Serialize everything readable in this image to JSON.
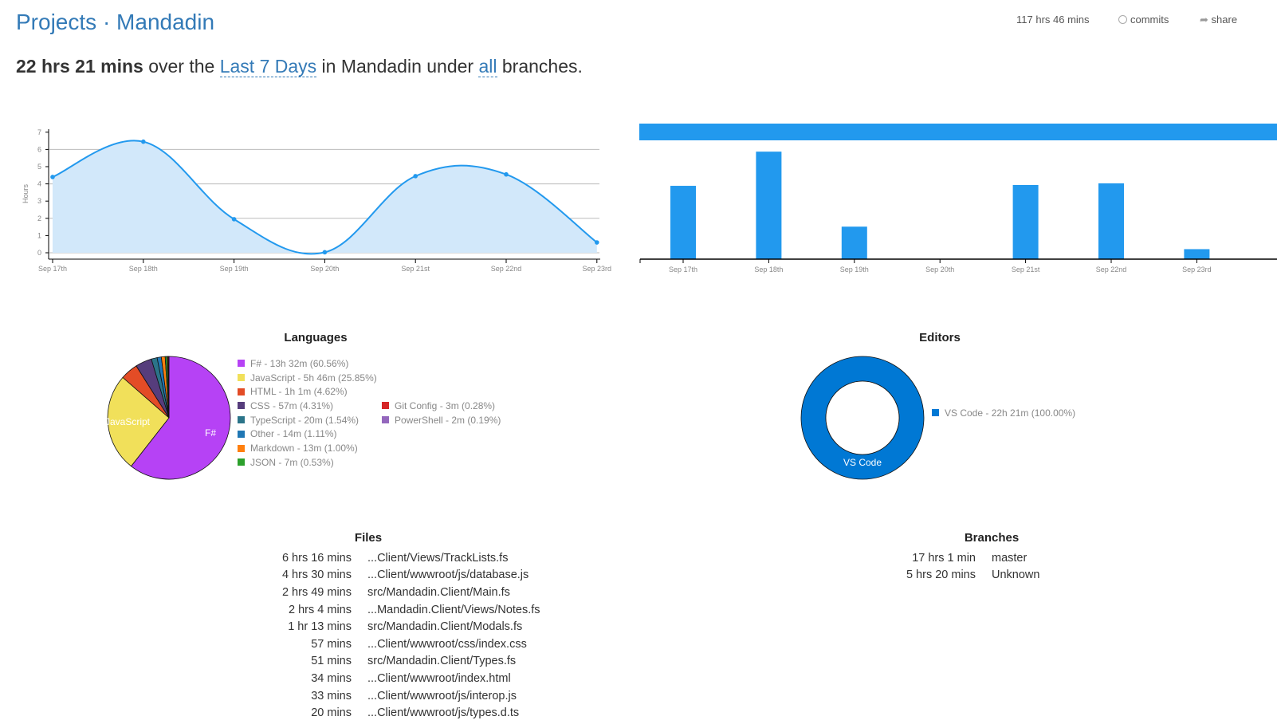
{
  "header": {
    "projects_label": "Projects",
    "separator": "·",
    "project_name": "Mandadin",
    "total_time": "117 hrs 46 mins",
    "commits_label": "commits",
    "share_label": "share"
  },
  "summary": {
    "duration": "22 hrs 21 mins",
    "over_the": "over the",
    "range": "Last 7 Days",
    "in": "in",
    "project": "Mandadin",
    "under": "under",
    "branch": "all",
    "tail": "branches."
  },
  "chart_data": [
    {
      "type": "area",
      "ylabel": "Hours",
      "ylim": [
        0,
        7
      ],
      "yticks": [
        0,
        1,
        2,
        3,
        4,
        5,
        6,
        7
      ],
      "grid": [
        0,
        2,
        4,
        6
      ],
      "categories": [
        "Sep 17th",
        "Sep 18th",
        "Sep 19th",
        "Sep 20th",
        "Sep 21st",
        "Sep 22nd",
        "Sep 23rd"
      ],
      "values": [
        4.4,
        6.45,
        1.95,
        0.03,
        4.45,
        4.55,
        0.6
      ]
    },
    {
      "type": "bar",
      "categories": [
        "Sep 17th",
        "Sep 18th",
        "Sep 19th",
        "Sep 20th",
        "Sep 21st",
        "Sep 22nd",
        "Sep 23rd"
      ],
      "values": [
        4.4,
        6.45,
        1.95,
        0.03,
        4.45,
        4.55,
        0.6
      ],
      "color": "#2299ee"
    },
    {
      "type": "pie",
      "title": "Languages",
      "slices": [
        {
          "label": "F#",
          "legend": "F# - 13h 32m (60.56%)",
          "value": 60.56,
          "color": "#b642f5"
        },
        {
          "label": "JavaScript",
          "legend": "JavaScript - 5h 46m (25.85%)",
          "value": 25.85,
          "color": "#f1e05a"
        },
        {
          "label": "HTML",
          "legend": "HTML - 1h 1m (4.62%)",
          "value": 4.62,
          "color": "#e34c26"
        },
        {
          "label": "CSS",
          "legend": "CSS - 57m (4.31%)",
          "value": 4.31,
          "color": "#563d7c"
        },
        {
          "label": "TypeScript",
          "legend": "TypeScript - 20m (1.54%)",
          "value": 1.54,
          "color": "#2b7489"
        },
        {
          "label": "Other",
          "legend": "Other - 14m (1.11%)",
          "value": 1.11,
          "color": "#1f77b4"
        },
        {
          "label": "Markdown",
          "legend": "Markdown - 13m (1.00%)",
          "value": 1.0,
          "color": "#ff7f0e"
        },
        {
          "label": "JSON",
          "legend": "JSON - 7m (0.53%)",
          "value": 0.53,
          "color": "#2ca02c"
        },
        {
          "label": "Git Config",
          "legend": "Git Config - 3m (0.28%)",
          "value": 0.28,
          "color": "#d62728"
        },
        {
          "label": "PowerShell",
          "legend": "PowerShell - 2m (0.19%)",
          "value": 0.19,
          "color": "#9467bd"
        }
      ]
    },
    {
      "type": "pie",
      "title": "Editors",
      "slices": [
        {
          "label": "VS Code",
          "legend": "VS Code - 22h 21m (100.00%)",
          "value": 100,
          "color": "#0078d4"
        }
      ]
    }
  ],
  "files": {
    "title": "Files",
    "rows": [
      {
        "time": "6 hrs 16 mins",
        "path": "...Client/Views/TrackLists.fs"
      },
      {
        "time": "4 hrs 30 mins",
        "path": "...Client/wwwroot/js/database.js"
      },
      {
        "time": "2 hrs 49 mins",
        "path": "src/Mandadin.Client/Main.fs"
      },
      {
        "time": "2 hrs 4 mins",
        "path": "...Mandadin.Client/Views/Notes.fs"
      },
      {
        "time": "1 hr 13 mins",
        "path": "src/Mandadin.Client/Modals.fs"
      },
      {
        "time": "57 mins",
        "path": "...Client/wwwroot/css/index.css"
      },
      {
        "time": "51 mins",
        "path": "src/Mandadin.Client/Types.fs"
      },
      {
        "time": "34 mins",
        "path": "...Client/wwwroot/index.html"
      },
      {
        "time": "33 mins",
        "path": "...Client/wwwroot/js/interop.js"
      },
      {
        "time": "20 mins",
        "path": "...Client/wwwroot/js/types.d.ts"
      }
    ]
  },
  "branches": {
    "title": "Branches",
    "rows": [
      {
        "time": "17 hrs 1 min",
        "name": "master"
      },
      {
        "time": "5 hrs 20 mins",
        "name": "Unknown"
      }
    ]
  }
}
